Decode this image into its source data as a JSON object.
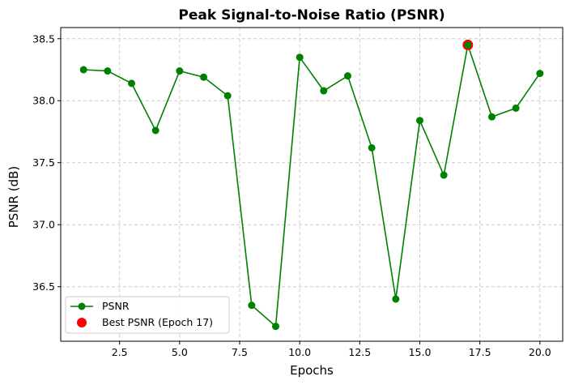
{
  "chart_data": {
    "type": "line",
    "title": "Peak Signal-to-Noise Ratio (PSNR)",
    "xlabel": "Epochs",
    "ylabel": "PSNR (dB)",
    "xlim": [
      0.05,
      20.95
    ],
    "ylim": [
      36.06,
      38.59
    ],
    "x_ticks": [
      2.5,
      5.0,
      7.5,
      10.0,
      12.5,
      15.0,
      17.5,
      20.0
    ],
    "x_tick_labels": [
      "2.5",
      "5.0",
      "7.5",
      "10.0",
      "12.5",
      "15.0",
      "17.5",
      "20.0"
    ],
    "y_ticks": [
      36.5,
      37.0,
      37.5,
      38.0,
      38.5
    ],
    "y_tick_labels": [
      "36.5",
      "37.0",
      "37.5",
      "38.0",
      "38.5"
    ],
    "grid": true,
    "legend_position": "lower-left",
    "series": [
      {
        "name": "PSNR",
        "color": "#008000",
        "marker": "circle",
        "x": [
          1,
          2,
          3,
          4,
          5,
          6,
          7,
          8,
          9,
          10,
          11,
          12,
          13,
          14,
          15,
          16,
          17,
          18,
          19,
          20
        ],
        "y": [
          38.25,
          38.24,
          38.14,
          37.76,
          38.24,
          38.19,
          38.04,
          36.35,
          36.18,
          38.35,
          38.08,
          38.2,
          37.62,
          36.4,
          37.84,
          37.4,
          38.45,
          37.87,
          37.94,
          38.22
        ]
      }
    ],
    "highlight": {
      "name": "Best PSNR (Epoch 17)",
      "color": "#ff0000",
      "x": 17,
      "y": 38.45
    }
  }
}
